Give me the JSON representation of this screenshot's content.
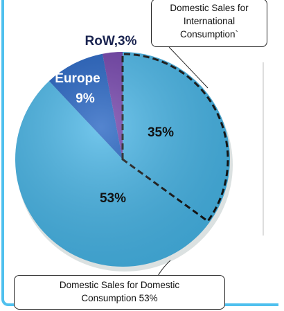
{
  "chart_data": {
    "type": "pie",
    "categories": [
      "Domestic Sales for International Consumption`",
      "Domestic Sales for Domestic Consumption 53%",
      "Europe",
      null
    ],
    "values": [
      35,
      53,
      9,
      3
    ],
    "value_labels": [
      "35%",
      "53%",
      "9%",
      "RoW,3%"
    ],
    "colors": [
      "#45b4e6",
      "#45b4e6",
      "#1b5cbf",
      "#6c3aa6"
    ],
    "start_angle": 0,
    "direction": "clockwise"
  }
}
